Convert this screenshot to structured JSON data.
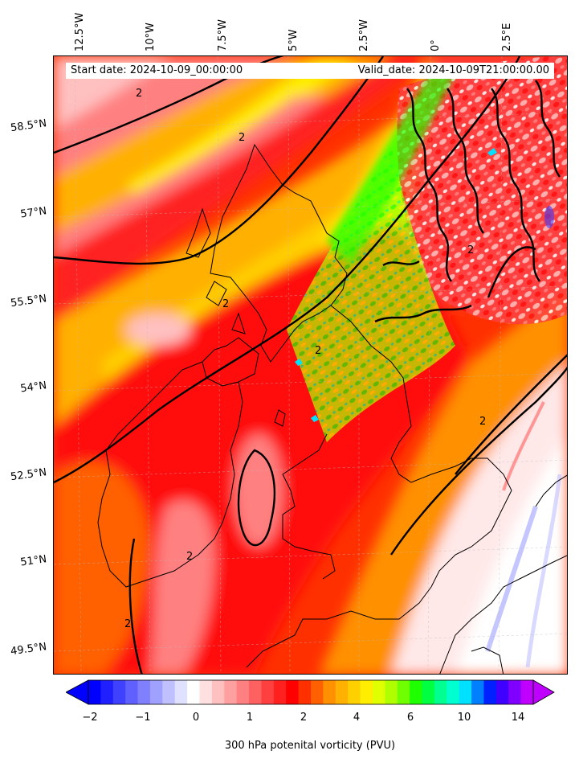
{
  "header": {
    "start_date": "Start date: 2024-10-09_00:00:00",
    "valid_date": "Valid_date: 2024-10-09T21:00:00.00"
  },
  "axes": {
    "lon_labels": [
      "12.5°W",
      "10°W",
      "7.5°W",
      "5°W",
      "2.5°W",
      "0°",
      "2.5°E"
    ],
    "lat_labels": [
      "58.5°N",
      "57°N",
      "55.5°N",
      "54°N",
      "52.5°N",
      "51°N",
      "49.5°N"
    ]
  },
  "colorbar": {
    "label": "300 hPa potenital vorticity (PVU)",
    "ticks": [
      "−2",
      "−1",
      "0",
      "1",
      "2",
      "4",
      "6",
      "10",
      "14"
    ],
    "colors": [
      "#0000ff",
      "#2020ff",
      "#4040ff",
      "#6060ff",
      "#8080ff",
      "#a0a0ff",
      "#c0c0ff",
      "#e0e0ff",
      "#ffffff",
      "#ffe0e0",
      "#ffc0c0",
      "#ffa0a0",
      "#ff8080",
      "#ff6060",
      "#ff4040",
      "#ff2020",
      "#ff0000",
      "#ff3000",
      "#ff6000",
      "#ff9000",
      "#ffb000",
      "#ffd000",
      "#ffee00",
      "#e0ff00",
      "#b0ff00",
      "#70ff00",
      "#20ff00",
      "#00ff40",
      "#00ff90",
      "#00ffd0",
      "#00e0ff",
      "#0080ff",
      "#0020ff",
      "#4000ff",
      "#8000ff",
      "#c000ff"
    ]
  },
  "contour_labels": [
    "2"
  ]
}
